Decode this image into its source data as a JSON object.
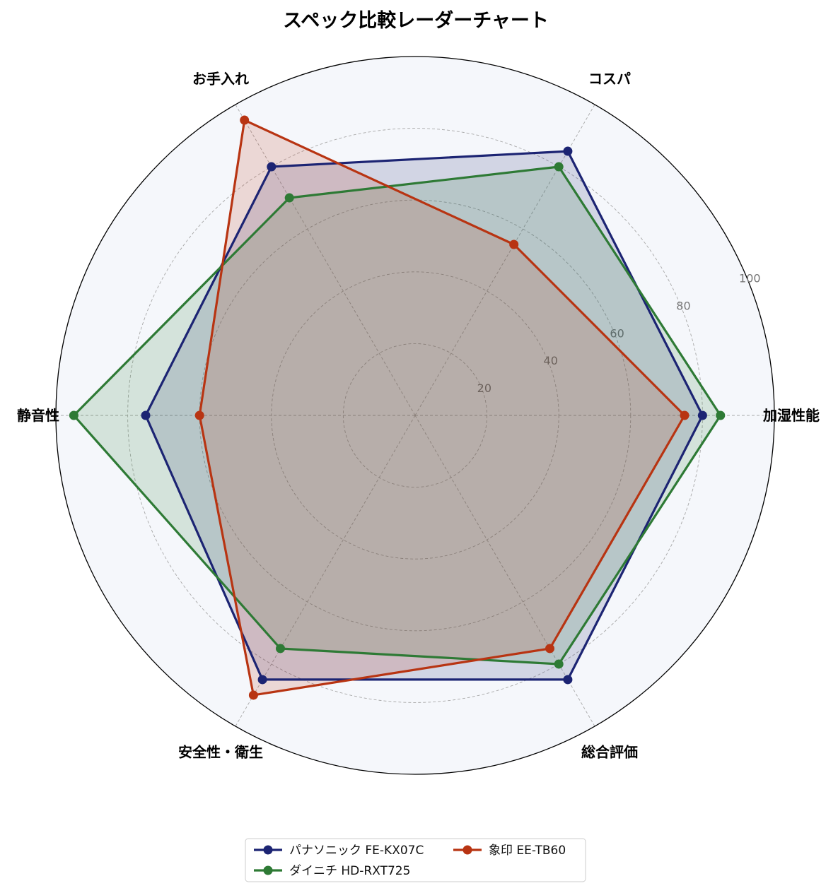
{
  "chart_data": {
    "type": "radar",
    "title": "スペック比較レーダーチャート",
    "axes": [
      "加湿性能",
      "コスパ",
      "お手入れ",
      "静音性",
      "安全性・衛生",
      "総合評価"
    ],
    "rlim": [
      0,
      100
    ],
    "ticks": [
      20,
      40,
      60,
      80,
      100
    ],
    "tick_labels": [
      "20",
      "40",
      "60",
      "80",
      "100"
    ],
    "grid": true,
    "legend_position": "bottom-center",
    "series": [
      {
        "name": "パナソニック FE-KX07C",
        "color": "#1c2473",
        "values": [
          80,
          85,
          80,
          75,
          85,
          85
        ]
      },
      {
        "name": "ダイニチ HD-RXT725",
        "color": "#2e7a35",
        "values": [
          85,
          80,
          70,
          95,
          75,
          80
        ]
      },
      {
        "name": "象印 EE-TB60",
        "color": "#b83412",
        "values": [
          75,
          55,
          95,
          60,
          90,
          75
        ]
      }
    ]
  }
}
